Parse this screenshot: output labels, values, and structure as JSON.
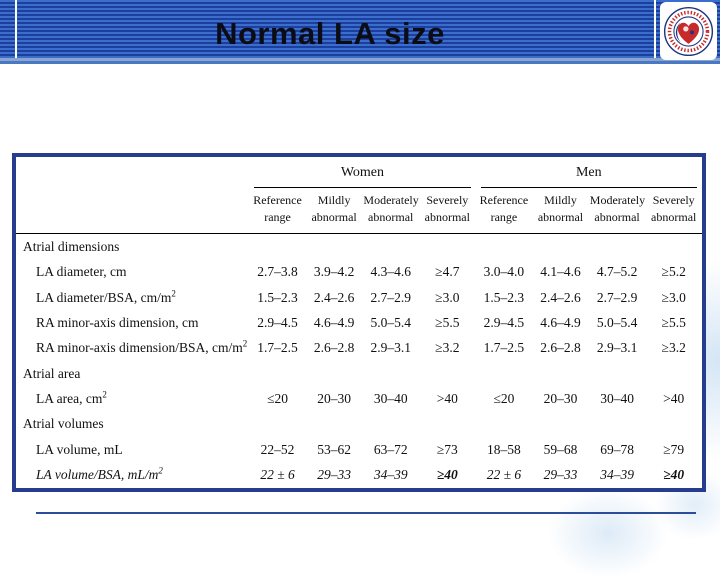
{
  "slide": {
    "title": "Normal LA size"
  },
  "header": {
    "logo_name": "society-of-echocardiography-seal"
  },
  "colors": {
    "stripe_light": "#3a6dcc",
    "stripe_dark": "#1c3f9e",
    "table_border": "#263c8f",
    "separator_line": "#2c4c9c",
    "logo_red": "#c62a2a",
    "logo_navy": "#1d3580"
  },
  "table": {
    "group_headers": [
      "Women",
      "Men"
    ],
    "sub_headers": [
      "Reference range",
      "Mildly abnormal",
      "Moderately abnormal",
      "Severely abnormal",
      "Reference range",
      "Mildly abnormal",
      "Moderately abnormal",
      "Severely abnormal"
    ],
    "rows": [
      {
        "type": "section",
        "label": "Atrial dimensions"
      },
      {
        "type": "metric",
        "label": "LA diameter, cm",
        "values": [
          "2.7–3.8",
          "3.9–4.2",
          "4.3–4.6",
          "≥4.7",
          "3.0–4.0",
          "4.1–4.6",
          "4.7–5.2",
          "≥5.2"
        ]
      },
      {
        "type": "metric",
        "label": "LA diameter/BSA, cm/m",
        "sup": "2",
        "values": [
          "1.5–2.3",
          "2.4–2.6",
          "2.7–2.9",
          "≥3.0",
          "1.5–2.3",
          "2.4–2.6",
          "2.7–2.9",
          "≥3.0"
        ]
      },
      {
        "type": "metric",
        "label": "RA minor-axis dimension, cm",
        "values": [
          "2.9–4.5",
          "4.6–4.9",
          "5.0–5.4",
          "≥5.5",
          "2.9–4.5",
          "4.6–4.9",
          "5.0–5.4",
          "≥5.5"
        ]
      },
      {
        "type": "metric",
        "label": "RA minor-axis dimension/BSA, cm/m",
        "sup": "2",
        "values": [
          "1.7–2.5",
          "2.6–2.8",
          "2.9–3.1",
          "≥3.2",
          "1.7–2.5",
          "2.6–2.8",
          "2.9–3.1",
          "≥3.2"
        ]
      },
      {
        "type": "section",
        "label": "Atrial area"
      },
      {
        "type": "metric",
        "label": "LA area, cm",
        "sup": "2",
        "values": [
          "≤20",
          "20–30",
          "30–40",
          ">40",
          "≤20",
          "20–30",
          "30–40",
          ">40"
        ]
      },
      {
        "type": "section",
        "label": "Atrial volumes"
      },
      {
        "type": "metric",
        "label": "LA volume, mL",
        "values": [
          "22–52",
          "53–62",
          "63–72",
          "≥73",
          "18–58",
          "59–68",
          "69–78",
          "≥79"
        ]
      },
      {
        "type": "metric",
        "label": "LA volume/BSA, mL/m",
        "sup": "2",
        "italic": true,
        "bold_cols": [
          3,
          7
        ],
        "values": [
          "22 ± 6",
          "29–33",
          "34–39",
          "≥40",
          "22 ± 6",
          "29–33",
          "34–39",
          "≥40"
        ]
      }
    ]
  }
}
